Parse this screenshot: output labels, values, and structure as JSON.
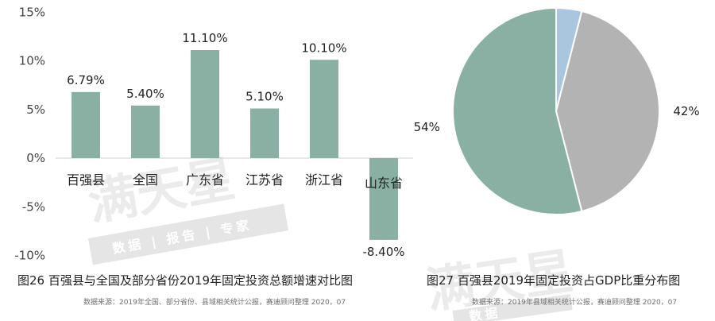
{
  "chart_data": [
    {
      "type": "bar",
      "caption": "图26 百强县与全国及部分省份2019年固定投资总额增速对比图",
      "source": "数据来源：2019年全国、部分省份、县域相关统计公报，赛迪顾问整理 2020，07",
      "categories": [
        "百强县",
        "全国",
        "广东省",
        "江苏省",
        "浙江省",
        "山东省"
      ],
      "values": [
        6.79,
        5.4,
        11.1,
        5.1,
        10.1,
        -8.4
      ],
      "value_labels": [
        "6.79%",
        "5.40%",
        "11.10%",
        "5.10%",
        "10.10%",
        "-8.40%"
      ],
      "y_ticks": [
        15,
        10,
        5,
        0,
        -5,
        -10
      ],
      "y_tick_labels": [
        "15%",
        "10%",
        "5%",
        "0%",
        "-5%",
        "-10%"
      ],
      "ylim": [
        -10,
        15
      ],
      "grid": false,
      "color": "#89b0a3"
    },
    {
      "type": "pie",
      "caption": "图27 百强县2019年固定投资占GDP比重分布图",
      "source": "数据来源：2019年县域相关统计公报，赛迪顾问整理 2020，07",
      "slices": [
        {
          "value": 4,
          "label": "",
          "color": "#a9c6de"
        },
        {
          "value": 42,
          "label": "42%",
          "color": "#b3b3b3"
        },
        {
          "value": 54,
          "label": "54%",
          "color": "#89b0a3"
        }
      ]
    }
  ],
  "watermark": {
    "left_big": "满天星",
    "left_small": "数据 | 报告 | 专家",
    "right_big": "满天星",
    "right_small": "数据"
  }
}
